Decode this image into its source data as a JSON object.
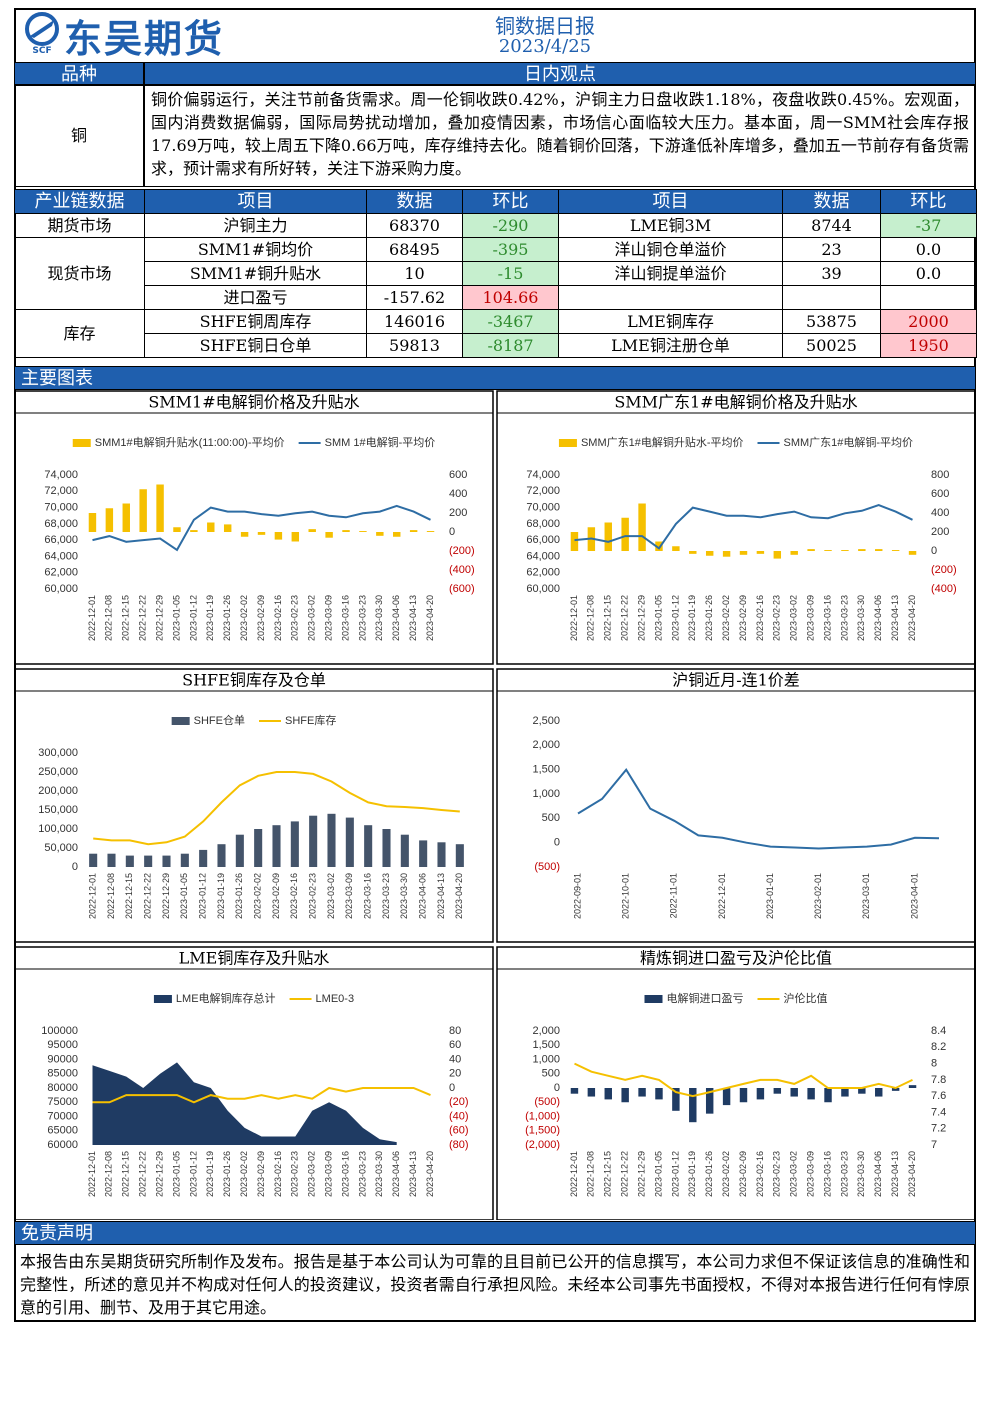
{
  "header": {
    "logo": "东吴期货",
    "logo_sub": "SCF",
    "title": "铜数据日报",
    "date": "2023/4/25"
  },
  "view": {
    "headers": [
      "品种",
      "日内观点"
    ],
    "variety": "铜",
    "text": "铜价偏弱运行，关注节前备货需求。周一伦铜收跌0.42%，沪铜主力日盘收跌1.18%，夜盘收跌0.45%。宏观面，国内消费数据偏弱，国际局势扰动增加，叠加疫情因素，市场信心面临较大压力。基本面，周一SMM社会库存报17.69万吨，较上周五下降0.66万吨，库存维持去化。随着铜价回落，下游逢低补库增多，叠加五一节前存有备货需求，预计需求有所好转，关注下游采购力度。"
  },
  "table": {
    "headers": [
      "产业链数据",
      "项目",
      "数据",
      "环比",
      "项目",
      "数据",
      "环比"
    ],
    "groups": [
      {
        "category": "期货市场",
        "rows": [
          [
            "沪铜主力",
            "68370",
            "-290",
            "LME铜3M",
            "8744",
            "-37"
          ]
        ]
      },
      {
        "category": "现货市场",
        "rows": [
          [
            "SMM1#铜均价",
            "68495",
            "-395",
            "洋山铜仓单溢价",
            "23",
            "0.0"
          ],
          [
            "SMM1#铜升贴水",
            "10",
            "-15",
            "洋山铜提单溢价",
            "39",
            "0.0"
          ],
          [
            "进口盈亏",
            "-157.62",
            "104.66"
          ]
        ]
      },
      {
        "category": "库存",
        "rows": [
          [
            "SHFE铜周库存",
            "146016",
            "-3467",
            "LME铜库存",
            "53875",
            "2000"
          ],
          [
            "SHFE铜日仓单",
            "59813",
            "-8187",
            "LME铜注册仓单",
            "50025",
            "1950"
          ]
        ]
      }
    ]
  },
  "sections": {
    "charts": "主要图表",
    "disclaimer": "免责声明"
  },
  "disclaimer": "本报告由东吴期货研究所制作及发布。报告是基于本公司认为可靠的且目前已公开的信息撰写，本公司力求但不保证该信息的准确性和完整性，所述的意见并不构成对任何人的投资建议，投资者需自行承担风险。未经本公司事先书面授权，不得对本报告进行任何有悖原意的引用、删节、及用于其它用途。",
  "chart_data": [
    {
      "type": "bar-line",
      "title": "SMM1#电解铜价格及升贴水",
      "categories": [
        "2022-12-01",
        "2022-12-08",
        "2022-12-15",
        "2022-12-22",
        "2022-12-29",
        "2023-01-05",
        "2023-01-12",
        "2023-01-19",
        "2023-01-26",
        "2023-02-02",
        "2023-02-09",
        "2023-02-16",
        "2023-02-23",
        "2023-03-02",
        "2023-03-09",
        "2023-03-16",
        "2023-03-23",
        "2023-03-30",
        "2023-04-06",
        "2023-04-13",
        "2023-04-20"
      ],
      "series": [
        {
          "name": "SMM1#电解铜升贴水(11:00:00)-平均价",
          "type": "bar",
          "axis": "y2",
          "color": "#f5c000",
          "values": [
            200,
            250,
            300,
            450,
            500,
            50,
            20,
            100,
            80,
            -50,
            -30,
            -80,
            -100,
            30,
            -60,
            20,
            10,
            -40,
            -50,
            20,
            10
          ]
        },
        {
          "name": "SMM 1#电解铜-平均价",
          "type": "line",
          "color": "#2e6da4",
          "values": [
            66000,
            66500,
            65800,
            66000,
            66200,
            64800,
            68500,
            70000,
            69500,
            69500,
            69200,
            69000,
            69300,
            69500,
            69000,
            68800,
            69300,
            69500,
            70200,
            69500,
            68500
          ]
        }
      ],
      "ylim": [
        60000,
        74000
      ],
      "yticks": [
        {
          "value": 60000,
          "label": "60,000"
        },
        {
          "value": 62000,
          "label": "62,000"
        },
        {
          "value": 64000,
          "label": "64,000"
        },
        {
          "value": 66000,
          "label": "66,000"
        },
        {
          "value": 68000,
          "label": "68,000"
        },
        {
          "value": 70000,
          "label": "70,000"
        },
        {
          "value": 72000,
          "label": "72,000"
        },
        {
          "value": 74000,
          "label": "74,000"
        }
      ],
      "y2lim": [
        -600,
        600
      ],
      "y2ticks": [
        {
          "value": -600,
          "label": "(600)"
        },
        {
          "value": -400,
          "label": "(400)"
        },
        {
          "value": -200,
          "label": "(200)"
        },
        0,
        200,
        400,
        600
      ]
    },
    {
      "type": "bar-line",
      "title": "SMM广东1#电解铜价格及升贴水",
      "categories": [
        "2022-12-01",
        "2022-12-08",
        "2022-12-15",
        "2022-12-22",
        "2022-12-29",
        "2023-01-05",
        "2023-01-12",
        "2023-01-19",
        "2023-01-26",
        "2023-02-02",
        "2023-02-09",
        "2023-02-16",
        "2023-02-23",
        "2023-03-02",
        "2023-03-09",
        "2023-03-16",
        "2023-03-23",
        "2023-03-30",
        "2023-04-06",
        "2023-04-13",
        "2023-04-20"
      ],
      "series": [
        {
          "name": "SMM广东1#电解铜升贴水-平均价",
          "type": "bar",
          "axis": "y2",
          "color": "#f5c000",
          "values": [
            200,
            250,
            300,
            350,
            500,
            100,
            50,
            -30,
            -50,
            -60,
            -40,
            -30,
            -80,
            -40,
            20,
            10,
            10,
            20,
            20,
            10,
            -40
          ]
        },
        {
          "name": "SMM广东1#电解铜-平均价",
          "type": "line",
          "color": "#2e6da4",
          "values": [
            66000,
            66200,
            65800,
            66500,
            66500,
            65000,
            68000,
            70000,
            69500,
            69000,
            69000,
            68800,
            69200,
            69500,
            68800,
            68700,
            69300,
            69600,
            70300,
            69500,
            68500
          ]
        }
      ],
      "ylim": [
        60000,
        74000
      ],
      "yticks": [
        {
          "value": 60000,
          "label": "60,000"
        },
        {
          "value": 62000,
          "label": "62,000"
        },
        {
          "value": 64000,
          "label": "64,000"
        },
        {
          "value": 66000,
          "label": "66,000"
        },
        {
          "value": 68000,
          "label": "68,000"
        },
        {
          "value": 70000,
          "label": "70,000"
        },
        {
          "value": 72000,
          "label": "72,000"
        },
        {
          "value": 74000,
          "label": "74,000"
        }
      ],
      "y2lim": [
        -400,
        800
      ],
      "y2ticks": [
        {
          "value": -400,
          "label": "(400)"
        },
        {
          "value": -200,
          "label": "(200)"
        },
        0,
        200,
        400,
        600,
        800
      ]
    },
    {
      "type": "bar-line",
      "title": "SHFE铜库存及仓单",
      "categories": [
        "2022-12-01",
        "2022-12-08",
        "2022-12-15",
        "2022-12-22",
        "2022-12-29",
        "2023-01-05",
        "2023-01-12",
        "2023-01-19",
        "2023-01-26",
        "2023-02-02",
        "2023-02-09",
        "2023-02-16",
        "2023-02-23",
        "2023-03-02",
        "2023-03-09",
        "2023-03-16",
        "2023-03-23",
        "2023-03-30",
        "2023-04-06",
        "2023-04-13",
        "2023-04-20"
      ],
      "series": [
        {
          "name": "SHFE仓单",
          "type": "bar",
          "color": "#44546a",
          "values": [
            35000,
            35000,
            30000,
            30000,
            30000,
            35000,
            45000,
            60000,
            85000,
            100000,
            110000,
            120000,
            135000,
            140000,
            130000,
            110000,
            100000,
            85000,
            70000,
            65000,
            60000
          ]
        },
        {
          "name": "SHFE库存",
          "type": "line",
          "color": "#f5c000",
          "values": [
            75000,
            70000,
            70000,
            60000,
            65000,
            80000,
            120000,
            170000,
            215000,
            240000,
            250000,
            250000,
            245000,
            225000,
            195000,
            170000,
            160000,
            158000,
            155000,
            150000,
            146000
          ]
        }
      ],
      "ylim": [
        0,
        300000
      ],
      "yticks": [
        0,
        {
          "value": 50000,
          "label": "50,000"
        },
        {
          "value": 100000,
          "label": "100,000"
        },
        {
          "value": 150000,
          "label": "150,000"
        },
        {
          "value": 200000,
          "label": "200,000"
        },
        {
          "value": 250000,
          "label": "250,000"
        },
        {
          "value": 300000,
          "label": "300,000"
        }
      ]
    },
    {
      "type": "line",
      "title": "沪铜近月-连1价差",
      "color": "#2e6da4",
      "categories": [
        "2022-09-01",
        null,
        "2022-10-01",
        null,
        "2022-11-01",
        null,
        "2022-12-01",
        null,
        "2023-01-01",
        null,
        "2023-02-01",
        null,
        "2023-03-01",
        null,
        "2023-04-01",
        null
      ],
      "values": [
        600,
        900,
        1500,
        700,
        450,
        150,
        100,
        0,
        -80,
        -100,
        -120,
        -100,
        -80,
        -40,
        100,
        90
      ],
      "ylim": [
        -500,
        2500
      ],
      "yticks": [
        {
          "value": -500,
          "label": "(500)"
        },
        0,
        500,
        {
          "value": 1000,
          "label": "1,000"
        },
        {
          "value": 1500,
          "label": "1,500"
        },
        {
          "value": 2000,
          "label": "2,000"
        },
        {
          "value": 2500,
          "label": "2,500"
        }
      ]
    },
    {
      "type": "area-line",
      "title": "LME铜库存及升贴水",
      "categories": [
        "2022-12-01",
        "2022-12-08",
        "2022-12-15",
        "2022-12-22",
        "2022-12-29",
        "2023-01-05",
        "2023-01-12",
        "2023-01-19",
        "2023-01-26",
        "2023-02-02",
        "2023-02-09",
        "2023-02-16",
        "2023-02-23",
        "2023-03-02",
        "2023-03-09",
        "2023-03-16",
        "2023-03-23",
        "2023-03-30",
        "2023-04-06",
        "2023-04-13",
        "2023-04-20"
      ],
      "series": [
        {
          "name": "LME电解铜库存总计",
          "type": "area",
          "color": "#1f3b63",
          "values": [
            88000,
            86000,
            84000,
            80000,
            85000,
            89000,
            82000,
            80000,
            72000,
            66000,
            63000,
            63000,
            63000,
            72000,
            75000,
            72000,
            66000,
            62000,
            61000,
            null,
            null
          ]
        },
        {
          "name": "LME0-3",
          "type": "line",
          "axis": "y2",
          "color": "#f5c000",
          "values": [
            -20,
            -20,
            -10,
            -10,
            -10,
            -10,
            -20,
            -10,
            -15,
            -15,
            -10,
            -15,
            -10,
            -15,
            0,
            -5,
            0,
            0,
            0,
            0,
            -10
          ]
        }
      ],
      "ylim": [
        60000,
        100000
      ],
      "yticks": [
        60000,
        65000,
        70000,
        75000,
        80000,
        85000,
        90000,
        95000,
        100000
      ],
      "y2lim": [
        -80,
        80
      ],
      "y2ticks": [
        {
          "value": -80,
          "label": "(80)"
        },
        {
          "value": -60,
          "label": "(60)"
        },
        {
          "value": -40,
          "label": "(40)"
        },
        {
          "value": -20,
          "label": "(20)"
        },
        0,
        20,
        40,
        60,
        80
      ]
    },
    {
      "type": "bar-line",
      "title": "精炼铜进口盈亏及沪伦比值",
      "categories": [
        "2022-12-01",
        "2022-12-08",
        "2022-12-15",
        "2022-12-22",
        "2022-12-29",
        "2023-01-05",
        "2023-01-12",
        "2023-01-19",
        "2023-01-26",
        "2023-02-02",
        "2023-02-09",
        "2023-02-16",
        "2023-02-23",
        "2023-03-02",
        "2023-03-09",
        "2023-03-16",
        "2023-03-23",
        "2023-03-30",
        "2023-04-06",
        "2023-04-13",
        "2023-04-20"
      ],
      "series": [
        {
          "name": "电解铜进口盈亏",
          "type": "bar",
          "color": "#1f3b63",
          "values": [
            -200,
            -300,
            -400,
            -500,
            -300,
            -400,
            -800,
            -1200,
            -900,
            -600,
            -500,
            -400,
            -200,
            -300,
            -400,
            -500,
            -300,
            -200,
            -300,
            -100,
            100
          ]
        },
        {
          "name": "沪伦比值",
          "type": "line",
          "axis": "y2",
          "color": "#f5c000",
          "values": [
            8.0,
            7.9,
            7.85,
            7.8,
            7.85,
            7.8,
            7.65,
            7.6,
            7.65,
            7.7,
            7.75,
            7.8,
            7.8,
            7.75,
            7.85,
            7.7,
            7.7,
            7.7,
            7.75,
            7.7,
            7.8
          ]
        }
      ],
      "ylim": [
        -2000,
        2000
      ],
      "yticks": [
        {
          "value": -2000,
          "label": "(2,000)"
        },
        {
          "value": -1500,
          "label": "(1,500)"
        },
        {
          "value": -1000,
          "label": "(1,000)"
        },
        {
          "value": -500,
          "label": "(500)"
        },
        0,
        500,
        {
          "value": 1000,
          "label": "1,000"
        },
        {
          "value": 1500,
          "label": "1,500"
        },
        {
          "value": 2000,
          "label": "2,000"
        }
      ],
      "y2lim": [
        7,
        8.4
      ],
      "y2ticks": [
        7,
        7.2,
        7.4,
        7.6,
        7.8,
        8,
        8.2,
        8.4
      ]
    }
  ]
}
